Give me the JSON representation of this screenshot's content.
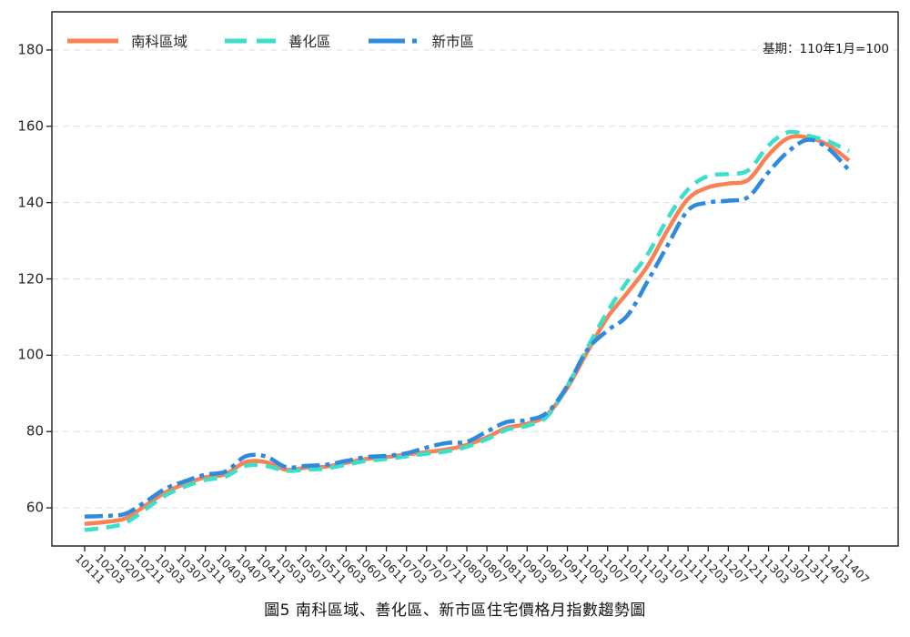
{
  "note": "基期：110年1月=100",
  "chart_data": {
    "type": "line",
    "title": "圖5 南科區域、善化區、新市區住宅價格月指數趨勢圖",
    "note": "基期：110年1月=100",
    "xlabel": "",
    "ylabel": "",
    "x_labels": [
      "10111",
      "10203",
      "10207",
      "10211",
      "10303",
      "10307",
      "10311",
      "10403",
      "10407",
      "10411",
      "10503",
      "10507",
      "10511",
      "10603",
      "10607",
      "10611",
      "10703",
      "10707",
      "10711",
      "10803",
      "10807",
      "10811",
      "10903",
      "10907",
      "10911",
      "11003",
      "11007",
      "11011",
      "11103",
      "11107",
      "11111",
      "11203",
      "11207",
      "11211",
      "11303",
      "11307",
      "11311",
      "11403",
      "11407"
    ],
    "y_ticks": [
      60,
      80,
      100,
      120,
      140,
      160,
      180
    ],
    "ylim": [
      50,
      190
    ],
    "grid": "horizontal-dashed",
    "grid_color": "#d9dde2",
    "legend_position": "top-left-inside",
    "series": [
      {
        "name": "南科區域",
        "color": "#fa8153",
        "style": "solid",
        "values": [
          55.8,
          56.3,
          57.2,
          60.5,
          64,
          66.3,
          68,
          68.8,
          72,
          72,
          70,
          70.5,
          70.8,
          71.8,
          72.8,
          73.3,
          74,
          74.6,
          75.3,
          76.5,
          78.5,
          81,
          82,
          84.5,
          91.5,
          101,
          110,
          116.5,
          123.5,
          133,
          141,
          144,
          145,
          146,
          152.5,
          157,
          157,
          155,
          151
        ]
      },
      {
        "name": "善化區",
        "color": "#3bdfca",
        "style": "dashed",
        "values": [
          54.2,
          54.8,
          56,
          59.5,
          63.2,
          65.6,
          67.3,
          68.2,
          71,
          71,
          69.7,
          70,
          70.3,
          71.3,
          72.3,
          72.8,
          73.5,
          74.2,
          74.8,
          76,
          78,
          80.5,
          81.5,
          84,
          92,
          102,
          111.5,
          119.5,
          126.5,
          136,
          143.5,
          147,
          147.5,
          148.5,
          155,
          158.5,
          157.5,
          156,
          153.5
        ]
      },
      {
        "name": "新市區",
        "color": "#2e8ade",
        "style": "dash-dot",
        "values": [
          57.7,
          57.9,
          58.4,
          61.5,
          65,
          67,
          68.7,
          69.5,
          73.5,
          73.5,
          70.7,
          71,
          71.3,
          72.3,
          73.3,
          73.6,
          74.3,
          75.8,
          77,
          77.3,
          80,
          82.5,
          83,
          85,
          92,
          101.5,
          106.5,
          110.5,
          119.5,
          129,
          138,
          140,
          140.5,
          141.5,
          148,
          153.5,
          156.5,
          154,
          148.5
        ]
      }
    ]
  }
}
